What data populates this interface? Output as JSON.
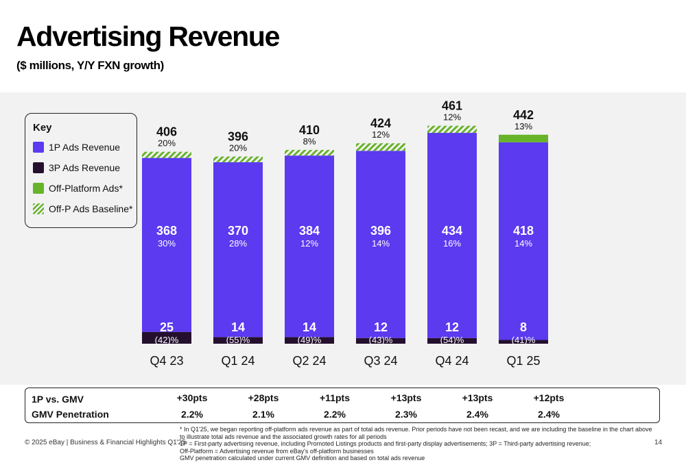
{
  "page": {
    "title": "Advertising Revenue",
    "subtitle": "($ millions, Y/Y FXN growth)"
  },
  "key": {
    "title": "Key",
    "items": [
      {
        "label": "1P Ads Revenue",
        "color": "#5b3af0"
      },
      {
        "label": "3P Ads Revenue",
        "color": "#24102e"
      },
      {
        "label": "Off-Platform Ads*",
        "color": "#67b329"
      },
      {
        "label": "Off-P Ads Baseline*",
        "color": "#67b329"
      }
    ]
  },
  "chart_data": {
    "type": "bar",
    "stacked": true,
    "categories": [
      "Q4 23",
      "Q1 24",
      "Q2 24",
      "Q3 24",
      "Q4 24",
      "Q1 25"
    ],
    "series": [
      {
        "name": "3P Ads Revenue",
        "values": [
          25,
          14,
          14,
          12,
          12,
          8
        ],
        "growth": [
          "(42)%",
          "(55)%",
          "(49)%",
          "(43)%",
          "(54)%",
          "(41)%"
        ]
      },
      {
        "name": "1P Ads Revenue",
        "values": [
          368,
          370,
          384,
          396,
          434,
          418
        ],
        "growth": [
          "30%",
          "28%",
          "12%",
          "14%",
          "16%",
          "14%"
        ]
      },
      {
        "name": "Off-P Ads Baseline*",
        "values": [
          13,
          12,
          12,
          16,
          15,
          0
        ]
      },
      {
        "name": "Off-Platform Ads*",
        "values": [
          0,
          0,
          0,
          0,
          0,
          16
        ]
      }
    ],
    "totals": [
      406,
      396,
      410,
      424,
      461,
      442
    ],
    "total_growth": [
      "20%",
      "20%",
      "8%",
      "12%",
      "12%",
      "13%"
    ],
    "ylim": [
      0,
      480
    ]
  },
  "metrics": {
    "rows": [
      {
        "label": "1P vs. GMV",
        "values": [
          "+30pts",
          "+28pts",
          "+11pts",
          "+13pts",
          "+13pts",
          "+12pts"
        ]
      },
      {
        "label": "GMV Penetration",
        "values": [
          "2.2%",
          "2.1%",
          "2.2%",
          "2.3%",
          "2.4%",
          "2.4%"
        ]
      }
    ]
  },
  "footer": {
    "copyright": "© 2025 eBay | Business & Financial Highlights Q1'25",
    "page_number": "14",
    "notes": [
      "* In Q1'25, we began reporting off-platform ads revenue as part of total ads revenue. Prior periods have not been recast, and we are including the baseline in the chart above to illustrate total ads revenue and the associated growth rates for all periods",
      "1P = First-party advertising revenue, including Promoted Listings products and first-party display advertisements; 3P = Third-party advertising revenue;",
      "Off-Platform = Advertising revenue from eBay's off-platform businesses",
      "GMV penetration calculated under current GMV definition and based on total ads revenue"
    ]
  }
}
